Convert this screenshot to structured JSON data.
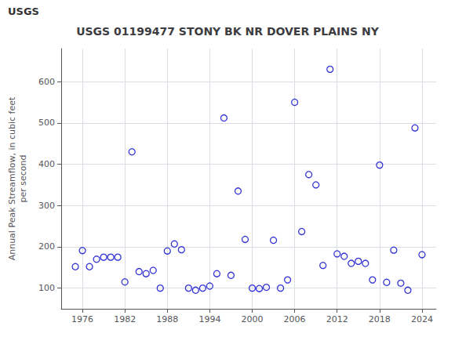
{
  "chart_data": {
    "type": "scatter",
    "title": "USGS 01199477 STONY BK NR DOVER PLAINS NY",
    "annotations": [
      "USGS"
    ],
    "ylabel": "Annual Peak Streamflow, in cubic feet\nper second",
    "x": [
      1975,
      1976,
      1977,
      1978,
      1979,
      1980,
      1981,
      1982,
      1983,
      1984,
      1985,
      1986,
      1987,
      1988,
      1989,
      1990,
      1991,
      1992,
      1993,
      1994,
      1995,
      1996,
      1997,
      1998,
      1999,
      2000,
      2001,
      2002,
      2003,
      2004,
      2005,
      2006,
      2007,
      2008,
      2009,
      2010,
      2011,
      2012,
      2013,
      2014,
      2015,
      2016,
      2017,
      2018,
      2019,
      2020,
      2021,
      2022,
      2023,
      2024
    ],
    "values": [
      152,
      191,
      152,
      170,
      175,
      175,
      175,
      115,
      430,
      140,
      135,
      143,
      100,
      190,
      207,
      193,
      100,
      95,
      100,
      105,
      135,
      512,
      131,
      335,
      218,
      100,
      99,
      102,
      216,
      100,
      120,
      550,
      237,
      375,
      350,
      155,
      630,
      183,
      177,
      160,
      165,
      160,
      120,
      398,
      114,
      192,
      112,
      95,
      488,
      181
    ],
    "color": "#0000CC",
    "marker": "circle",
    "xlim": [
      1973,
      2026
    ],
    "ylim": [
      50,
      680
    ],
    "xticks": [
      1976,
      1982,
      1988,
      1994,
      2000,
      2006,
      2012,
      2018,
      2024
    ],
    "yticks": [
      100,
      200,
      300,
      400,
      500,
      600
    ],
    "grid": true
  }
}
